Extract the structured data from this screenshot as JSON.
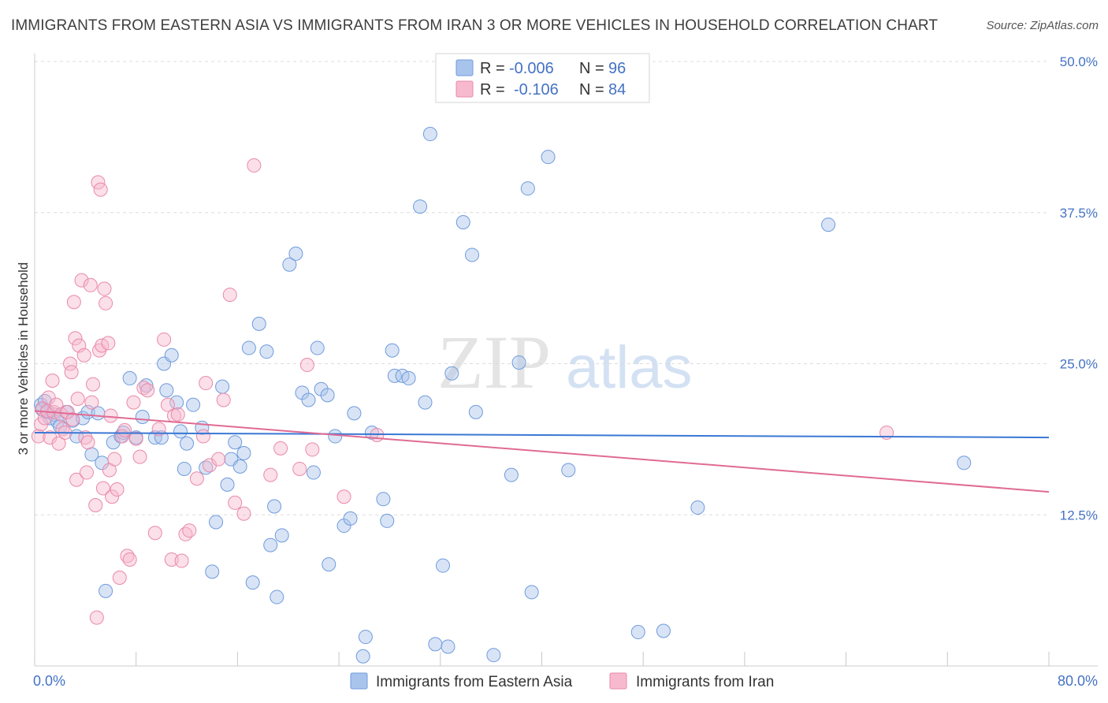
{
  "title": "IMMIGRANTS FROM EASTERN ASIA VS IMMIGRANTS FROM IRAN 3 OR MORE VEHICLES IN HOUSEHOLD CORRELATION CHART",
  "source": "Source: ZipAtlas.com",
  "watermark": {
    "zip": "ZIP",
    "atlas": "atlas"
  },
  "legend": {
    "rows": [
      {
        "r_label": "R =",
        "r_value": "-0.006",
        "n_label": "N =",
        "n_value": "96",
        "color": "#a9c4ec"
      },
      {
        "r_label": "R =",
        "r_value": "-0.106",
        "n_label": "N =",
        "n_value": "84",
        "color": "#f7b9ce"
      }
    ]
  },
  "bottom_legend": [
    {
      "label": "Immigrants from Eastern Asia",
      "color": "#a9c4ec"
    },
    {
      "label": "Immigrants from Iran",
      "color": "#f7b9ce"
    }
  ],
  "chart_data": {
    "type": "scatter",
    "title": "IMMIGRANTS FROM EASTERN ASIA VS IMMIGRANTS FROM IRAN 3 OR MORE VEHICLES IN HOUSEHOLD CORRELATION CHART",
    "xlabel": "",
    "ylabel": "3 or more Vehicles in Household",
    "xlim": [
      0,
      80
    ],
    "ylim": [
      0,
      50
    ],
    "x_tick_labels": [
      "0.0%",
      "80.0%"
    ],
    "y_ticks": [
      12.5,
      25.0,
      37.5,
      50.0
    ],
    "y_tick_labels": [
      "12.5%",
      "25.0%",
      "37.5%",
      "50.0%"
    ],
    "grid": true,
    "legend_position": "top-center",
    "series": [
      {
        "name": "Immigrants from Eastern Asia",
        "color": "#a9c4ec",
        "stroke": "#6f9bdc",
        "trend": {
          "x": [
            0,
            80
          ],
          "y": [
            19.3,
            18.9
          ],
          "color": "#3a78d4"
        },
        "points": [
          [
            0.5,
            21.6
          ],
          [
            0.6,
            21.2
          ],
          [
            0.8,
            21.9
          ],
          [
            1.0,
            21.0
          ],
          [
            1.2,
            20.5
          ],
          [
            1.5,
            20.8
          ],
          [
            1.8,
            20.2
          ],
          [
            2.0,
            19.8
          ],
          [
            2.5,
            21.0
          ],
          [
            3.0,
            20.3
          ],
          [
            3.3,
            19.0
          ],
          [
            3.8,
            20.5
          ],
          [
            4.2,
            21.0
          ],
          [
            5.0,
            20.9
          ],
          [
            4.5,
            17.5
          ],
          [
            5.3,
            16.8
          ],
          [
            5.6,
            6.2
          ],
          [
            6.2,
            18.5
          ],
          [
            6.8,
            19.0
          ],
          [
            7.0,
            19.3
          ],
          [
            7.5,
            23.8
          ],
          [
            8.0,
            18.9
          ],
          [
            8.5,
            20.6
          ],
          [
            8.8,
            23.2
          ],
          [
            9.5,
            18.9
          ],
          [
            10.0,
            18.9
          ],
          [
            10.2,
            25.0
          ],
          [
            10.4,
            22.8
          ],
          [
            10.8,
            25.7
          ],
          [
            11.2,
            21.8
          ],
          [
            11.5,
            19.4
          ],
          [
            11.8,
            16.3
          ],
          [
            12.0,
            18.4
          ],
          [
            12.5,
            21.6
          ],
          [
            13.2,
            19.7
          ],
          [
            13.5,
            16.4
          ],
          [
            14.0,
            7.8
          ],
          [
            14.3,
            11.9
          ],
          [
            14.8,
            23.1
          ],
          [
            15.2,
            15.0
          ],
          [
            15.5,
            17.1
          ],
          [
            15.8,
            18.5
          ],
          [
            16.2,
            16.5
          ],
          [
            16.5,
            17.6
          ],
          [
            16.9,
            26.3
          ],
          [
            17.2,
            6.9
          ],
          [
            17.7,
            28.3
          ],
          [
            18.3,
            26.0
          ],
          [
            18.6,
            10.0
          ],
          [
            18.9,
            13.2
          ],
          [
            19.5,
            10.8
          ],
          [
            19.1,
            5.7
          ],
          [
            20.1,
            33.2
          ],
          [
            20.6,
            34.1
          ],
          [
            21.1,
            22.6
          ],
          [
            21.6,
            22.0
          ],
          [
            22.0,
            16.0
          ],
          [
            22.3,
            26.3
          ],
          [
            22.6,
            22.9
          ],
          [
            23.1,
            22.4
          ],
          [
            23.2,
            8.4
          ],
          [
            23.7,
            19.0
          ],
          [
            24.4,
            11.6
          ],
          [
            24.9,
            12.2
          ],
          [
            25.2,
            20.9
          ],
          [
            26.1,
            2.4
          ],
          [
            25.9,
            0.8
          ],
          [
            26.6,
            19.3
          ],
          [
            27.5,
            13.8
          ],
          [
            27.8,
            12.0
          ],
          [
            28.2,
            26.1
          ],
          [
            28.4,
            24.0
          ],
          [
            29.0,
            24.0
          ],
          [
            29.5,
            23.8
          ],
          [
            30.4,
            38.0
          ],
          [
            30.8,
            21.8
          ],
          [
            31.2,
            44.0
          ],
          [
            31.6,
            1.8
          ],
          [
            32.6,
            1.6
          ],
          [
            32.2,
            8.3
          ],
          [
            32.9,
            24.2
          ],
          [
            33.8,
            36.7
          ],
          [
            34.5,
            34.0
          ],
          [
            34.8,
            21.0
          ],
          [
            36.2,
            0.9
          ],
          [
            37.6,
            15.8
          ],
          [
            38.2,
            25.1
          ],
          [
            38.9,
            39.5
          ],
          [
            39.2,
            6.1
          ],
          [
            40.5,
            42.1
          ],
          [
            42.1,
            16.2
          ],
          [
            47.6,
            2.8
          ],
          [
            49.6,
            2.9
          ],
          [
            52.3,
            13.1
          ],
          [
            62.6,
            36.5
          ],
          [
            73.3,
            16.8
          ]
        ]
      },
      {
        "name": "Immigrants from Iran",
        "color": "#f7b9ce",
        "stroke": "#e98aa8",
        "trend": {
          "x": [
            0,
            80
          ],
          "y": [
            21.1,
            14.4
          ],
          "color": "#e06b93"
        },
        "points": [
          [
            0.3,
            19.0
          ],
          [
            0.5,
            20.0
          ],
          [
            0.6,
            21.3
          ],
          [
            0.8,
            20.5
          ],
          [
            1.0,
            21.1
          ],
          [
            1.1,
            22.2
          ],
          [
            1.2,
            18.9
          ],
          [
            1.4,
            23.6
          ],
          [
            1.5,
            21.0
          ],
          [
            1.7,
            21.6
          ],
          [
            1.9,
            18.4
          ],
          [
            2.1,
            20.8
          ],
          [
            2.2,
            19.6
          ],
          [
            2.4,
            19.3
          ],
          [
            2.6,
            21.0
          ],
          [
            2.8,
            25.0
          ],
          [
            2.9,
            24.3
          ],
          [
            3.0,
            20.4
          ],
          [
            3.1,
            30.1
          ],
          [
            3.3,
            15.4
          ],
          [
            3.2,
            27.1
          ],
          [
            3.4,
            22.1
          ],
          [
            3.5,
            26.5
          ],
          [
            3.7,
            31.9
          ],
          [
            3.9,
            25.7
          ],
          [
            4.0,
            18.9
          ],
          [
            4.1,
            16.0
          ],
          [
            4.2,
            18.5
          ],
          [
            4.4,
            31.5
          ],
          [
            4.6,
            23.3
          ],
          [
            4.8,
            13.3
          ],
          [
            4.5,
            21.8
          ],
          [
            4.9,
            4.0
          ],
          [
            5.0,
            40.0
          ],
          [
            5.1,
            26.1
          ],
          [
            5.3,
            26.5
          ],
          [
            5.4,
            14.7
          ],
          [
            5.5,
            31.2
          ],
          [
            5.6,
            30.0
          ],
          [
            5.8,
            26.7
          ],
          [
            5.2,
            39.4
          ],
          [
            5.9,
            16.2
          ],
          [
            6.0,
            20.7
          ],
          [
            6.1,
            14.0
          ],
          [
            6.3,
            17.1
          ],
          [
            6.5,
            14.6
          ],
          [
            6.7,
            7.3
          ],
          [
            6.9,
            19.0
          ],
          [
            7.1,
            19.5
          ],
          [
            7.3,
            9.1
          ],
          [
            7.5,
            8.8
          ],
          [
            7.8,
            21.8
          ],
          [
            8.0,
            18.8
          ],
          [
            8.3,
            17.3
          ],
          [
            8.6,
            23.0
          ],
          [
            8.9,
            22.8
          ],
          [
            9.5,
            11.0
          ],
          [
            9.8,
            19.6
          ],
          [
            10.2,
            27.0
          ],
          [
            10.5,
            21.6
          ],
          [
            10.8,
            8.8
          ],
          [
            11.0,
            20.7
          ],
          [
            11.3,
            20.8
          ],
          [
            11.6,
            8.7
          ],
          [
            11.9,
            10.9
          ],
          [
            12.2,
            11.2
          ],
          [
            12.8,
            15.5
          ],
          [
            13.3,
            19.0
          ],
          [
            13.5,
            23.4
          ],
          [
            13.8,
            16.6
          ],
          [
            14.5,
            17.1
          ],
          [
            14.9,
            22.0
          ],
          [
            15.4,
            30.7
          ],
          [
            15.8,
            13.5
          ],
          [
            16.5,
            12.6
          ],
          [
            17.3,
            41.4
          ],
          [
            18.6,
            15.8
          ],
          [
            19.4,
            18.0
          ],
          [
            20.9,
            16.3
          ],
          [
            21.5,
            24.9
          ],
          [
            21.9,
            17.9
          ],
          [
            24.4,
            14.0
          ],
          [
            27.0,
            19.1
          ],
          [
            67.2,
            19.3
          ]
        ]
      }
    ]
  }
}
